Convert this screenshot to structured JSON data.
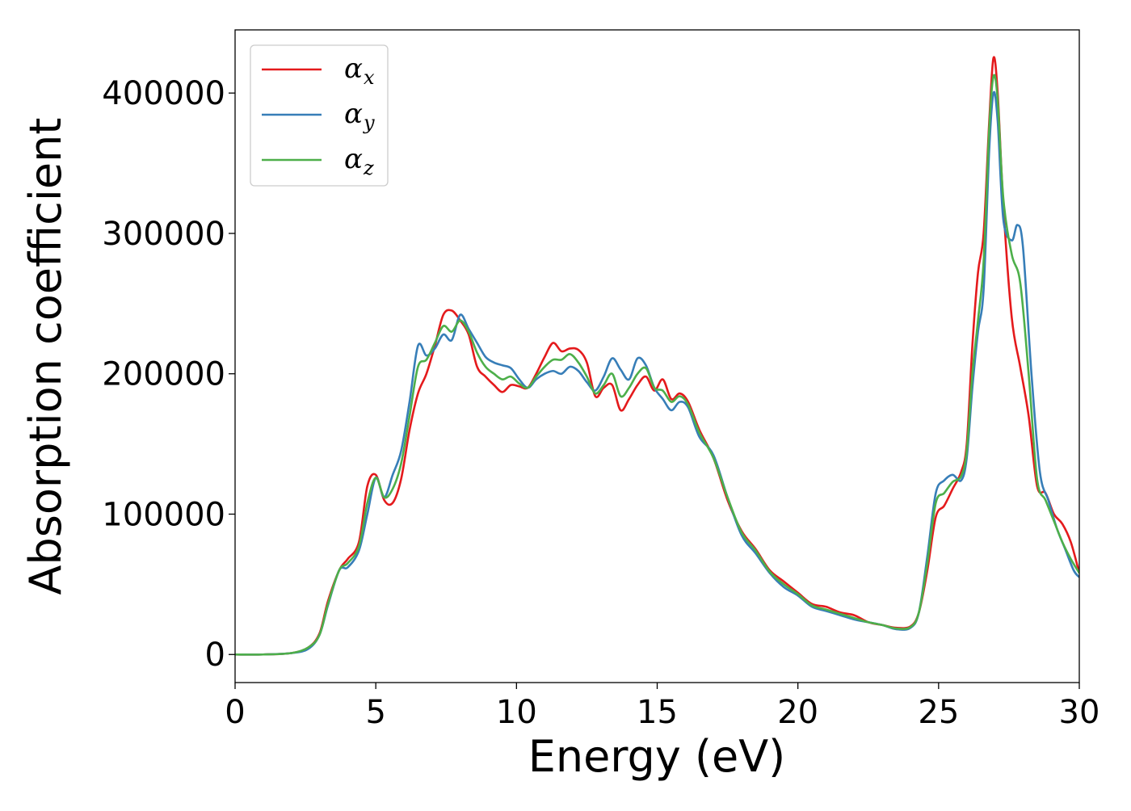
{
  "chart_data": {
    "type": "line",
    "title": "",
    "xlabel": "Energy (eV)",
    "ylabel": "Absorption coefficient",
    "xlim": [
      0,
      30
    ],
    "ylim": [
      -20000,
      445000
    ],
    "xticks": [
      0,
      5,
      10,
      15,
      20,
      25,
      30
    ],
    "yticks": [
      0,
      100000,
      200000,
      300000,
      400000
    ],
    "grid": false,
    "legend_position": "top-left",
    "series": [
      {
        "name": "α",
        "subscript": "x",
        "color": "#e41a1c",
        "points": [
          [
            0,
            0
          ],
          [
            1,
            0
          ],
          [
            2,
            1000
          ],
          [
            2.6,
            5000
          ],
          [
            3.0,
            15000
          ],
          [
            3.3,
            38000
          ],
          [
            3.7,
            60000
          ],
          [
            4.0,
            68000
          ],
          [
            4.4,
            80000
          ],
          [
            4.7,
            120000
          ],
          [
            5.0,
            128000
          ],
          [
            5.3,
            110000
          ],
          [
            5.6,
            108000
          ],
          [
            5.9,
            125000
          ],
          [
            6.2,
            160000
          ],
          [
            6.5,
            186000
          ],
          [
            6.8,
            200000
          ],
          [
            7.1,
            220000
          ],
          [
            7.4,
            242000
          ],
          [
            7.7,
            245000
          ],
          [
            8.0,
            238000
          ],
          [
            8.3,
            228000
          ],
          [
            8.6,
            205000
          ],
          [
            8.9,
            198000
          ],
          [
            9.2,
            192000
          ],
          [
            9.5,
            187000
          ],
          [
            9.8,
            192000
          ],
          [
            10.1,
            191000
          ],
          [
            10.4,
            190000
          ],
          [
            10.7,
            200000
          ],
          [
            11.0,
            212000
          ],
          [
            11.3,
            222000
          ],
          [
            11.6,
            216000
          ],
          [
            11.9,
            218000
          ],
          [
            12.2,
            217000
          ],
          [
            12.5,
            208000
          ],
          [
            12.8,
            184000
          ],
          [
            13.1,
            190000
          ],
          [
            13.4,
            192000
          ],
          [
            13.7,
            174000
          ],
          [
            14.0,
            182000
          ],
          [
            14.3,
            192000
          ],
          [
            14.6,
            198000
          ],
          [
            14.9,
            188000
          ],
          [
            15.2,
            196000
          ],
          [
            15.5,
            182000
          ],
          [
            15.8,
            186000
          ],
          [
            16.1,
            180000
          ],
          [
            16.5,
            160000
          ],
          [
            17.0,
            140000
          ],
          [
            17.5,
            110000
          ],
          [
            18.0,
            88000
          ],
          [
            18.5,
            75000
          ],
          [
            19.0,
            60000
          ],
          [
            19.5,
            52000
          ],
          [
            20.0,
            44000
          ],
          [
            20.5,
            36000
          ],
          [
            21.0,
            34000
          ],
          [
            21.5,
            30000
          ],
          [
            22.0,
            28000
          ],
          [
            22.5,
            23000
          ],
          [
            23.0,
            21000
          ],
          [
            23.5,
            19000
          ],
          [
            24.0,
            20000
          ],
          [
            24.3,
            30000
          ],
          [
            24.6,
            60000
          ],
          [
            24.9,
            98000
          ],
          [
            25.2,
            106000
          ],
          [
            25.5,
            118000
          ],
          [
            25.8,
            130000
          ],
          [
            26.0,
            150000
          ],
          [
            26.2,
            220000
          ],
          [
            26.4,
            272000
          ],
          [
            26.6,
            300000
          ],
          [
            26.8,
            380000
          ],
          [
            26.95,
            425000
          ],
          [
            27.1,
            400000
          ],
          [
            27.3,
            320000
          ],
          [
            27.6,
            240000
          ],
          [
            27.9,
            205000
          ],
          [
            28.2,
            170000
          ],
          [
            28.5,
            120000
          ],
          [
            28.8,
            115000
          ],
          [
            29.1,
            100000
          ],
          [
            29.4,
            93000
          ],
          [
            29.7,
            80000
          ],
          [
            30.0,
            58000
          ]
        ]
      },
      {
        "name": "α",
        "subscript": "y",
        "color": "#377eb8",
        "points": [
          [
            0,
            0
          ],
          [
            1,
            0
          ],
          [
            2,
            1000
          ],
          [
            2.6,
            4000
          ],
          [
            3.0,
            14000
          ],
          [
            3.3,
            35000
          ],
          [
            3.7,
            60000
          ],
          [
            4.0,
            62000
          ],
          [
            4.4,
            74000
          ],
          [
            4.7,
            100000
          ],
          [
            5.0,
            126000
          ],
          [
            5.3,
            112000
          ],
          [
            5.6,
            128000
          ],
          [
            5.9,
            145000
          ],
          [
            6.2,
            180000
          ],
          [
            6.5,
            220000
          ],
          [
            6.8,
            213000
          ],
          [
            7.1,
            218000
          ],
          [
            7.4,
            228000
          ],
          [
            7.7,
            224000
          ],
          [
            8.0,
            242000
          ],
          [
            8.3,
            232000
          ],
          [
            8.6,
            222000
          ],
          [
            8.9,
            212000
          ],
          [
            9.2,
            208000
          ],
          [
            9.5,
            206000
          ],
          [
            9.8,
            204000
          ],
          [
            10.1,
            196000
          ],
          [
            10.4,
            190000
          ],
          [
            10.7,
            196000
          ],
          [
            11.0,
            200000
          ],
          [
            11.3,
            202000
          ],
          [
            11.6,
            200000
          ],
          [
            11.9,
            205000
          ],
          [
            12.2,
            202000
          ],
          [
            12.5,
            194000
          ],
          [
            12.8,
            188000
          ],
          [
            13.1,
            198000
          ],
          [
            13.4,
            211000
          ],
          [
            13.7,
            203000
          ],
          [
            14.0,
            196000
          ],
          [
            14.3,
            211000
          ],
          [
            14.6,
            206000
          ],
          [
            14.9,
            190000
          ],
          [
            15.2,
            182000
          ],
          [
            15.5,
            174000
          ],
          [
            15.8,
            180000
          ],
          [
            16.1,
            176000
          ],
          [
            16.5,
            155000
          ],
          [
            17.0,
            142000
          ],
          [
            17.5,
            112000
          ],
          [
            18.0,
            85000
          ],
          [
            18.5,
            72000
          ],
          [
            19.0,
            58000
          ],
          [
            19.5,
            48000
          ],
          [
            20.0,
            42000
          ],
          [
            20.5,
            34000
          ],
          [
            21.0,
            31000
          ],
          [
            21.5,
            28000
          ],
          [
            22.0,
            25000
          ],
          [
            22.5,
            23000
          ],
          [
            23.0,
            21000
          ],
          [
            23.5,
            18000
          ],
          [
            24.0,
            19000
          ],
          [
            24.3,
            30000
          ],
          [
            24.6,
            70000
          ],
          [
            24.9,
            115000
          ],
          [
            25.2,
            124000
          ],
          [
            25.5,
            128000
          ],
          [
            25.8,
            124000
          ],
          [
            26.0,
            140000
          ],
          [
            26.2,
            190000
          ],
          [
            26.4,
            230000
          ],
          [
            26.6,
            260000
          ],
          [
            26.8,
            360000
          ],
          [
            26.95,
            400000
          ],
          [
            27.1,
            380000
          ],
          [
            27.3,
            310000
          ],
          [
            27.6,
            295000
          ],
          [
            27.8,
            306000
          ],
          [
            28.0,
            290000
          ],
          [
            28.3,
            200000
          ],
          [
            28.6,
            130000
          ],
          [
            28.9,
            110000
          ],
          [
            29.2,
            90000
          ],
          [
            29.5,
            75000
          ],
          [
            29.8,
            60000
          ],
          [
            30.0,
            55000
          ]
        ]
      },
      {
        "name": "α",
        "subscript": "z",
        "color": "#4daf4a",
        "points": [
          [
            0,
            0
          ],
          [
            1,
            0
          ],
          [
            2,
            1000
          ],
          [
            2.6,
            5000
          ],
          [
            3.0,
            14000
          ],
          [
            3.3,
            36000
          ],
          [
            3.7,
            60000
          ],
          [
            4.0,
            65000
          ],
          [
            4.4,
            77000
          ],
          [
            4.7,
            108000
          ],
          [
            5.0,
            126000
          ],
          [
            5.3,
            112000
          ],
          [
            5.6,
            118000
          ],
          [
            5.9,
            136000
          ],
          [
            6.2,
            170000
          ],
          [
            6.5,
            205000
          ],
          [
            6.8,
            210000
          ],
          [
            7.1,
            222000
          ],
          [
            7.4,
            234000
          ],
          [
            7.7,
            230000
          ],
          [
            8.0,
            238000
          ],
          [
            8.3,
            230000
          ],
          [
            8.6,
            215000
          ],
          [
            8.9,
            205000
          ],
          [
            9.2,
            200000
          ],
          [
            9.5,
            196000
          ],
          [
            9.8,
            198000
          ],
          [
            10.1,
            193000
          ],
          [
            10.4,
            190000
          ],
          [
            10.7,
            198000
          ],
          [
            11.0,
            205000
          ],
          [
            11.3,
            210000
          ],
          [
            11.6,
            210000
          ],
          [
            11.9,
            214000
          ],
          [
            12.2,
            208000
          ],
          [
            12.5,
            198000
          ],
          [
            12.8,
            186000
          ],
          [
            13.1,
            192000
          ],
          [
            13.4,
            200000
          ],
          [
            13.7,
            184000
          ],
          [
            14.0,
            190000
          ],
          [
            14.3,
            200000
          ],
          [
            14.6,
            204000
          ],
          [
            14.9,
            190000
          ],
          [
            15.2,
            188000
          ],
          [
            15.5,
            180000
          ],
          [
            15.8,
            184000
          ],
          [
            16.1,
            178000
          ],
          [
            16.5,
            158000
          ],
          [
            17.0,
            140000
          ],
          [
            17.5,
            112000
          ],
          [
            18.0,
            87000
          ],
          [
            18.5,
            74000
          ],
          [
            19.0,
            59000
          ],
          [
            19.5,
            50000
          ],
          [
            20.0,
            43000
          ],
          [
            20.5,
            35000
          ],
          [
            21.0,
            32000
          ],
          [
            21.5,
            29000
          ],
          [
            22.0,
            26000
          ],
          [
            22.5,
            23000
          ],
          [
            23.0,
            21000
          ],
          [
            23.5,
            18500
          ],
          [
            24.0,
            19500
          ],
          [
            24.3,
            30000
          ],
          [
            24.6,
            65000
          ],
          [
            24.9,
            108000
          ],
          [
            25.2,
            115000
          ],
          [
            25.5,
            123000
          ],
          [
            25.8,
            127000
          ],
          [
            26.0,
            145000
          ],
          [
            26.2,
            200000
          ],
          [
            26.4,
            238000
          ],
          [
            26.6,
            280000
          ],
          [
            26.8,
            375000
          ],
          [
            26.95,
            412000
          ],
          [
            27.1,
            395000
          ],
          [
            27.3,
            325000
          ],
          [
            27.6,
            285000
          ],
          [
            27.9,
            265000
          ],
          [
            28.2,
            200000
          ],
          [
            28.5,
            125000
          ],
          [
            28.8,
            110000
          ],
          [
            29.1,
            95000
          ],
          [
            29.4,
            80000
          ],
          [
            29.7,
            68000
          ],
          [
            30.0,
            58000
          ]
        ]
      }
    ]
  }
}
